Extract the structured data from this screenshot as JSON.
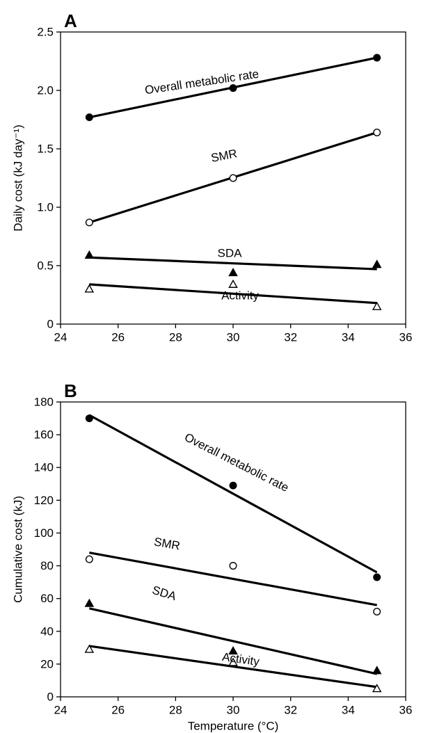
{
  "chart_data": [
    {
      "type": "scatter",
      "panel_label": "A",
      "xlabel": "",
      "ylabel": "Daily cost (kJ day⁻¹)",
      "xlim": [
        24,
        36
      ],
      "ylim": [
        0,
        2.5
      ],
      "xticks": [
        24,
        26,
        28,
        30,
        32,
        34,
        36
      ],
      "yticks": [
        0,
        0.5,
        1.0,
        1.5,
        2.0,
        2.5
      ],
      "ytick_labels": [
        "0",
        "0.5",
        "1.0",
        "1.5",
        "2.0",
        "2.5"
      ],
      "grid": false,
      "series": [
        {
          "name": "Overall metabolic rate",
          "marker": "filled-circle",
          "x": [
            25,
            30,
            35
          ],
          "y": [
            1.77,
            2.02,
            2.28
          ],
          "fit": [
            [
              25,
              1.77
            ],
            [
              35,
              2.28
            ]
          ]
        },
        {
          "name": "SMR",
          "marker": "open-circle",
          "x": [
            25,
            30,
            35
          ],
          "y": [
            0.87,
            1.25,
            1.64
          ],
          "fit": [
            [
              25,
              0.87
            ],
            [
              35,
              1.64
            ]
          ]
        },
        {
          "name": "SDA",
          "marker": "filled-triangle",
          "x": [
            25,
            30,
            35
          ],
          "y": [
            0.59,
            0.44,
            0.51
          ],
          "fit": [
            [
              25,
              0.57
            ],
            [
              35,
              0.47
            ]
          ]
        },
        {
          "name": "Activity",
          "marker": "open-triangle",
          "x": [
            25,
            30,
            35
          ],
          "y": [
            0.3,
            0.34,
            0.15
          ],
          "fit": [
            [
              25,
              0.34
            ],
            [
              35,
              0.18
            ]
          ]
        }
      ]
    },
    {
      "type": "scatter",
      "panel_label": "B",
      "xlabel": "Temperature (°C)",
      "ylabel": "Cumulative cost (kJ)",
      "xlim": [
        24,
        36
      ],
      "ylim": [
        0,
        180
      ],
      "xticks": [
        24,
        26,
        28,
        30,
        32,
        34,
        36
      ],
      "yticks": [
        0,
        20,
        40,
        60,
        80,
        100,
        120,
        140,
        160,
        180
      ],
      "ytick_labels": [
        "0",
        "20",
        "40",
        "60",
        "80",
        "100",
        "120",
        "140",
        "160",
        "180"
      ],
      "grid": false,
      "series": [
        {
          "name": "Overall metabolic rate",
          "marker": "filled-circle",
          "x": [
            25,
            30,
            35
          ],
          "y": [
            170,
            129,
            73
          ],
          "fit": [
            [
              25,
              172
            ],
            [
              35,
              76
            ]
          ]
        },
        {
          "name": "SMR",
          "marker": "open-circle",
          "x": [
            25,
            30,
            35
          ],
          "y": [
            84,
            80,
            52
          ],
          "fit": [
            [
              25,
              88
            ],
            [
              35,
              56
            ]
          ]
        },
        {
          "name": "SDA",
          "marker": "filled-triangle",
          "x": [
            25,
            30,
            35
          ],
          "y": [
            57,
            28,
            16
          ],
          "fit": [
            [
              25,
              54
            ],
            [
              35,
              14
            ]
          ]
        },
        {
          "name": "Activity",
          "marker": "open-triangle",
          "x": [
            25,
            30,
            35
          ],
          "y": [
            29,
            21,
            5
          ],
          "fit": [
            [
              25,
              31
            ],
            [
              35,
              6
            ]
          ]
        }
      ]
    }
  ]
}
